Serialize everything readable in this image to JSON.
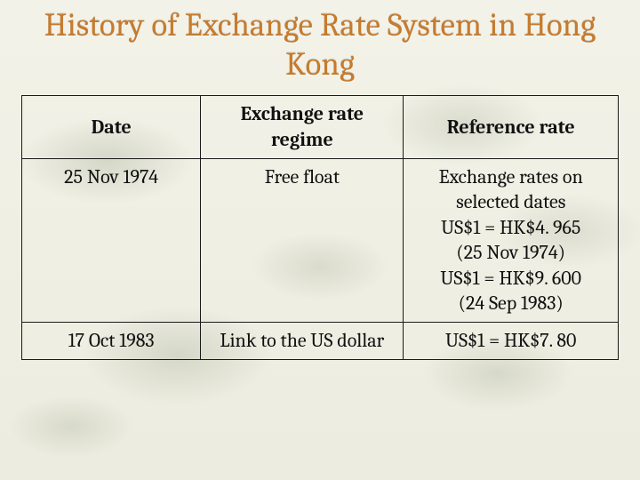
{
  "title": "History of Exchange Rate System in Hong Kong",
  "colors": {
    "title_color": "#c67b2e",
    "border_color": "#1a1a1a",
    "text_color": "#111111",
    "background_base": "#f0f0e6"
  },
  "typography": {
    "title_fontsize_pt": 28,
    "cell_fontsize_pt": 17,
    "font_family": "Cambria / Georgia serif"
  },
  "table": {
    "column_widths_pct": [
      30,
      34,
      36
    ],
    "columns": [
      "Date",
      "Exchange rate regime",
      "Reference rate"
    ],
    "rows": [
      {
        "date": "25 Nov 1974",
        "regime": "Free float",
        "reference_lines": [
          "Exchange rates on",
          "selected dates",
          "US$1 = HK$4. 965",
          "(25 Nov 1974)",
          "US$1 = HK$9. 600",
          "(24 Sep 1983)"
        ]
      },
      {
        "date": "17 Oct 1983",
        "regime": "Link to the US dollar",
        "reference_lines": [
          "US$1 = HK$7. 80"
        ]
      }
    ]
  }
}
